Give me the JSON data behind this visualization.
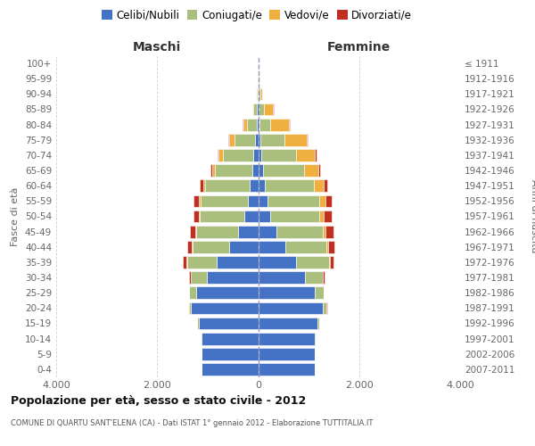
{
  "age_groups": [
    "0-4",
    "5-9",
    "10-14",
    "15-19",
    "20-24",
    "25-29",
    "30-34",
    "35-39",
    "40-44",
    "45-49",
    "50-54",
    "55-59",
    "60-64",
    "65-69",
    "70-74",
    "75-79",
    "80-84",
    "85-89",
    "90-94",
    "95-99",
    "100+"
  ],
  "birth_years": [
    "2007-2011",
    "2002-2006",
    "1997-2001",
    "1992-1996",
    "1987-1991",
    "1982-1986",
    "1977-1981",
    "1972-1976",
    "1967-1971",
    "1962-1966",
    "1957-1961",
    "1952-1956",
    "1947-1951",
    "1942-1946",
    "1937-1941",
    "1932-1936",
    "1927-1931",
    "1922-1926",
    "1917-1921",
    "1912-1916",
    "≤ 1911"
  ],
  "males": {
    "celibi": [
      1130,
      1130,
      1130,
      1180,
      1330,
      1220,
      1020,
      830,
      580,
      400,
      270,
      210,
      170,
      120,
      95,
      55,
      35,
      18,
      10,
      5,
      2
    ],
    "coniugati": [
      0,
      0,
      4,
      25,
      45,
      140,
      310,
      580,
      720,
      830,
      880,
      930,
      880,
      730,
      600,
      410,
      190,
      75,
      22,
      7,
      2
    ],
    "vedovi": [
      0,
      0,
      0,
      0,
      4,
      4,
      4,
      8,
      9,
      13,
      18,
      28,
      38,
      58,
      88,
      115,
      75,
      25,
      5,
      2,
      0
    ],
    "divorziati": [
      0,
      0,
      0,
      0,
      4,
      9,
      28,
      75,
      95,
      115,
      115,
      115,
      75,
      38,
      18,
      9,
      4,
      3,
      2,
      0,
      0
    ]
  },
  "females": {
    "nubili": [
      1130,
      1130,
      1130,
      1180,
      1280,
      1120,
      920,
      750,
      530,
      360,
      235,
      190,
      140,
      90,
      65,
      45,
      25,
      15,
      8,
      5,
      2
    ],
    "coniugate": [
      0,
      0,
      4,
      28,
      75,
      170,
      360,
      650,
      820,
      920,
      970,
      1020,
      970,
      820,
      680,
      480,
      220,
      95,
      28,
      9,
      2
    ],
    "vedove": [
      0,
      0,
      0,
      0,
      4,
      4,
      9,
      18,
      38,
      55,
      95,
      120,
      190,
      285,
      385,
      435,
      365,
      190,
      45,
      9,
      2
    ],
    "divorziate": [
      0,
      0,
      0,
      0,
      4,
      9,
      28,
      75,
      115,
      165,
      155,
      125,
      75,
      38,
      23,
      13,
      9,
      4,
      2,
      0,
      0
    ]
  },
  "colors": {
    "celibi_nubili": "#4472C4",
    "coniugati": "#AABF7E",
    "vedovi": "#F0B040",
    "divorziati": "#C03020"
  },
  "xlim": 4000,
  "title": "Popolazione per età, sesso e stato civile - 2012",
  "subtitle": "COMUNE DI QUARTU SANT'ELENA (CA) - Dati ISTAT 1° gennaio 2012 - Elaborazione TUTTITALIA.IT",
  "ylabel_left": "Fasce di età",
  "ylabel_right": "Anni di nascita",
  "xlabel_maschi": "Maschi",
  "xlabel_femmine": "Femmine",
  "bg_color": "#FFFFFF",
  "grid_color": "#CCCCCC",
  "legend_labels": [
    "Celibi/Nubili",
    "Coniugati/e",
    "Vedovi/e",
    "Divorziati/e"
  ]
}
